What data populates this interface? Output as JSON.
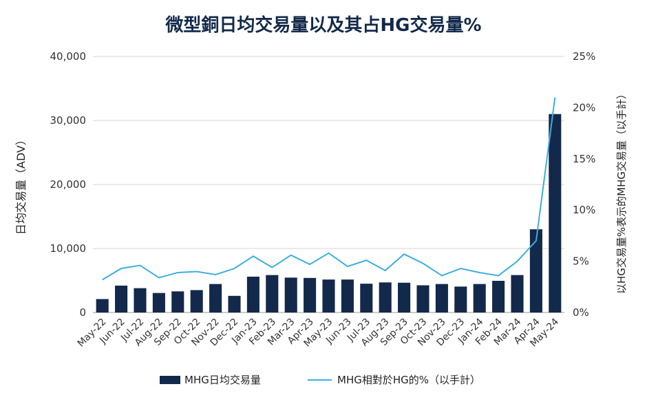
{
  "chart_data": {
    "type": "bar+line",
    "title": "微型銅日均交易量以及其占HG交易量%",
    "categories": [
      "May-22",
      "Jun-22",
      "Jul-22",
      "Aug-22",
      "Sep-22",
      "Oct-22",
      "Nov-22",
      "Dec-22",
      "Jan-23",
      "Feb-23",
      "Mar-23",
      "Apr-23",
      "May-23",
      "Jun-23",
      "Jul-23",
      "Aug-23",
      "Sep-23",
      "Oct-23",
      "Nov-23",
      "Dec-23",
      "Jan-24",
      "Feb-24",
      "Mar-24",
      "Apr-24",
      "May-24"
    ],
    "series": [
      {
        "name": "MHG日均交易量",
        "type": "bar",
        "axis": "left",
        "color": "#13294b",
        "values": [
          2100,
          4200,
          3800,
          3050,
          3300,
          3500,
          4450,
          2600,
          5600,
          5850,
          5450,
          5400,
          5150,
          5150,
          4500,
          4700,
          4650,
          4250,
          4450,
          4050,
          4450,
          4950,
          5850,
          13000,
          31000
        ]
      },
      {
        "name": "MHG相對於HG的%（以手計）",
        "type": "line",
        "axis": "right",
        "color": "#3aaee0",
        "values": [
          3.2,
          4.3,
          4.6,
          3.4,
          3.9,
          4.0,
          3.7,
          4.3,
          5.5,
          4.4,
          5.6,
          4.7,
          5.8,
          4.5,
          5.1,
          4.1,
          5.7,
          4.8,
          3.6,
          4.3,
          3.9,
          3.6,
          5.0,
          7.0,
          21.0
        ]
      }
    ],
    "y_left": {
      "label": "日均交易量（ADV）",
      "lim": [
        0,
        40000
      ],
      "ticks": [
        "0",
        "10,000",
        "20,000",
        "30,000",
        "40,000"
      ],
      "tick_values": [
        0,
        10000,
        20000,
        30000,
        40000
      ]
    },
    "y_right": {
      "label": "以HG交易量%表示的MHG交易量（以手計）",
      "lim": [
        0,
        25
      ],
      "ticks": [
        "0%",
        "5%",
        "10%",
        "15%",
        "20%",
        "25%"
      ],
      "tick_values": [
        0,
        5,
        10,
        15,
        20,
        25
      ]
    },
    "grid": true,
    "legend_position": "bottom-center"
  }
}
